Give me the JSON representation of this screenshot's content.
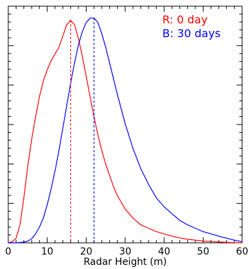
{
  "chart_data": {
    "type": "line",
    "title": "",
    "xlabel": "Radar Height (m)",
    "ylabel": "",
    "xlim": [
      0,
      60
    ],
    "ylim": [
      0,
      1
    ],
    "x_ticks": [
      0,
      10,
      20,
      30,
      40,
      50,
      60
    ],
    "x_tick_labels": [
      "0",
      "10",
      "20",
      "30",
      "40",
      "50",
      "60"
    ],
    "grid": false,
    "legend": {
      "placement": "top-right"
    },
    "series": [
      {
        "name": "R: 0 day",
        "color": "#ff0000",
        "peak_x": 16,
        "x": [
          0,
          1,
          2,
          3,
          4,
          5,
          6,
          7,
          8,
          9,
          10,
          11,
          12,
          13,
          14,
          15,
          16,
          17,
          18,
          19,
          20,
          21,
          22,
          23,
          24,
          25,
          26,
          27,
          28,
          30,
          32,
          34,
          36,
          38,
          40,
          42,
          44,
          46,
          48,
          50,
          52,
          55,
          58,
          60
        ],
        "values": [
          0,
          0.005,
          0.02,
          0.08,
          0.2,
          0.34,
          0.46,
          0.56,
          0.65,
          0.72,
          0.77,
          0.81,
          0.84,
          0.87,
          0.92,
          0.97,
          0.99,
          0.97,
          0.91,
          0.83,
          0.74,
          0.65,
          0.56,
          0.48,
          0.41,
          0.35,
          0.3,
          0.25,
          0.21,
          0.15,
          0.11,
          0.08,
          0.065,
          0.05,
          0.04,
          0.03,
          0.022,
          0.016,
          0.012,
          0.008,
          0.006,
          0.003,
          0.001,
          0
        ]
      },
      {
        "name": "B: 30 days",
        "color": "#0000ff",
        "peak_x": 22,
        "x": [
          0,
          2,
          4,
          5,
          6,
          7,
          8,
          9,
          10,
          11,
          12,
          13,
          14,
          15,
          16,
          17,
          18,
          19,
          20,
          21,
          22,
          23,
          24,
          25,
          26,
          27,
          28,
          30,
          32,
          34,
          36,
          38,
          40,
          42,
          44,
          46,
          48,
          50,
          52,
          55,
          58,
          60
        ],
        "values": [
          0,
          0,
          0.003,
          0.008,
          0.018,
          0.04,
          0.07,
          0.11,
          0.17,
          0.24,
          0.32,
          0.41,
          0.51,
          0.61,
          0.71,
          0.8,
          0.88,
          0.94,
          0.98,
          1.0,
          1.0,
          0.98,
          0.93,
          0.87,
          0.8,
          0.73,
          0.66,
          0.53,
          0.42,
          0.33,
          0.26,
          0.2,
          0.16,
          0.13,
          0.1,
          0.08,
          0.065,
          0.05,
          0.04,
          0.025,
          0.012,
          0.005
        ]
      }
    ]
  }
}
